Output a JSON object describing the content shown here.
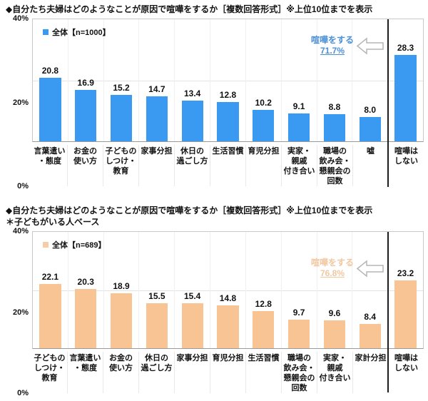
{
  "chart_data": [
    {
      "type": "bar",
      "title": "◆自分たち夫婦はどのようなことが原因で喧嘩をするか［複数回答形式］※上位10位までを表示",
      "subtitle": "",
      "legend_label": "全体【n=1000】",
      "categories": [
        "言葉遣い\n・態度",
        "お金の\n使い方",
        "子どもの\nしつけ・\n教育",
        "家事分担",
        "休日の\n過ごし方",
        "生活習慣",
        "育児分担",
        "実家・\n親戚\n付き合い",
        "職場の\n飲み会・\n懇親会の\n回数",
        "嘘",
        "喧嘩は\nしない"
      ],
      "values": [
        20.8,
        16.9,
        15.2,
        14.7,
        13.4,
        12.8,
        10.2,
        9.1,
        8.8,
        8.0,
        28.3
      ],
      "ylim": [
        0,
        40
      ],
      "yticks": [
        "40%",
        "20%",
        "0%"
      ],
      "grid": "horizontal line at 20%",
      "legend_position": "top-left inside plot",
      "separator_before_category": "喧嘩はしない",
      "annotation": {
        "label": "喧嘩をする",
        "value": "71.7%"
      },
      "bar_color": "#3A99F0",
      "legend_color": "#3A99F0",
      "annotation_color": "#4A90D8"
    },
    {
      "type": "bar",
      "title": "◆自分たち夫婦はどのようなことが原因で喧嘩をするか［複数回答形式］※上位10位までを表示",
      "subtitle": "＊子どもがいる人ベース",
      "legend_label": "全体【n=689】",
      "categories": [
        "子どもの\nしつけ・\n教育",
        "言葉遣い\n・態度",
        "お金の\n使い方",
        "休日の\n過ごし方",
        "家事分担",
        "育児分担",
        "生活習慣",
        "職場の\n飲み会・\n懇親会の\n回数",
        "実家・\n親戚\n付き合い",
        "家計分担",
        "喧嘩は\nしない"
      ],
      "values": [
        22.1,
        20.3,
        18.9,
        15.5,
        15.4,
        14.8,
        12.8,
        9.7,
        9.6,
        8.4,
        23.2
      ],
      "ylim": [
        0,
        40
      ],
      "yticks": [
        "40%",
        "20%",
        "0%"
      ],
      "grid": "horizontal line at 20%",
      "legend_position": "top-left inside plot",
      "separator_before_category": "喧嘩はしない",
      "annotation": {
        "label": "喧嘩をする",
        "value": "76.8%"
      },
      "bar_color": "#F9C493",
      "legend_color": "#F7CDA8",
      "annotation_color": "#F2C7A0"
    }
  ]
}
